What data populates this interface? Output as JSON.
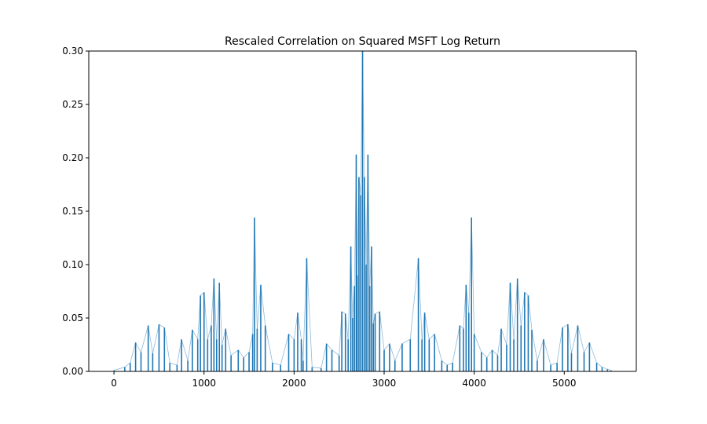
{
  "chart_data": {
    "type": "line",
    "title": "Rescaled Correlation on Squared MSFT Log Return",
    "xlabel": "",
    "ylabel": "",
    "xlim": [
      -280,
      5800
    ],
    "ylim": [
      0.0,
      0.3
    ],
    "x_ticks": [
      0,
      1000,
      2000,
      3000,
      4000,
      5000
    ],
    "x_tick_labels": [
      "0",
      "1000",
      "2000",
      "3000",
      "4000",
      "5000"
    ],
    "y_ticks": [
      0.0,
      0.05,
      0.1,
      0.15,
      0.2,
      0.25,
      0.3
    ],
    "y_tick_labels": [
      "0.00",
      "0.05",
      "0.10",
      "0.15",
      "0.20",
      "0.25",
      "0.30"
    ],
    "grid": false,
    "legend": "none",
    "line_color": "#1f77b4",
    "series": [
      {
        "x": [
          0,
          120,
          180,
          240,
          300,
          380,
          430,
          500,
          560,
          620,
          700,
          750,
          820,
          870,
          930,
          960,
          1000,
          1040,
          1080,
          1110,
          1140,
          1170,
          1200,
          1240,
          1300,
          1380,
          1440,
          1500,
          1540,
          1560,
          1590,
          1630,
          1680,
          1760,
          1850,
          1940,
          2000,
          2040,
          2080,
          2100,
          2140,
          2200,
          2300,
          2360,
          2420,
          2500,
          2530,
          2570,
          2600,
          2630,
          2650,
          2670,
          2690,
          2700,
          2720,
          2740,
          2760,
          2780,
          2800,
          2820,
          2840,
          2860,
          2880,
          2900,
          2950,
          3000,
          3060,
          3120,
          3200,
          3290,
          3380,
          3420,
          3450,
          3500,
          3560,
          3640,
          3700,
          3760,
          3840,
          3880,
          3910,
          3940,
          3970,
          4000,
          4080,
          4140,
          4200,
          4260,
          4300,
          4360,
          4400,
          4440,
          4480,
          4520,
          4560,
          4600,
          4640,
          4700,
          4770,
          4850,
          4920,
          4980,
          5040,
          5080,
          5150,
          5220,
          5280,
          5360,
          5420,
          5480,
          5520
        ],
        "y": [
          0.001,
          0.004,
          0.008,
          0.027,
          0.018,
          0.043,
          0.017,
          0.044,
          0.041,
          0.008,
          0.006,
          0.03,
          0.01,
          0.039,
          0.03,
          0.071,
          0.074,
          0.03,
          0.043,
          0.087,
          0.03,
          0.083,
          0.025,
          0.04,
          0.015,
          0.02,
          0.013,
          0.018,
          0.035,
          0.144,
          0.04,
          0.081,
          0.043,
          0.008,
          0.006,
          0.035,
          0.03,
          0.055,
          0.03,
          0.01,
          0.106,
          0.004,
          0.003,
          0.026,
          0.02,
          0.015,
          0.056,
          0.054,
          0.03,
          0.117,
          0.05,
          0.08,
          0.203,
          0.09,
          0.182,
          0.165,
          0.3,
          0.182,
          0.1,
          0.203,
          0.08,
          0.117,
          0.045,
          0.054,
          0.056,
          0.02,
          0.026,
          0.01,
          0.026,
          0.03,
          0.106,
          0.03,
          0.055,
          0.03,
          0.035,
          0.01,
          0.006,
          0.008,
          0.043,
          0.04,
          0.081,
          0.055,
          0.144,
          0.035,
          0.018,
          0.013,
          0.02,
          0.015,
          0.04,
          0.025,
          0.083,
          0.03,
          0.087,
          0.043,
          0.074,
          0.071,
          0.039,
          0.01,
          0.03,
          0.006,
          0.008,
          0.041,
          0.044,
          0.017,
          0.043,
          0.018,
          0.027,
          0.008,
          0.004,
          0.002,
          0.001
        ]
      }
    ]
  }
}
